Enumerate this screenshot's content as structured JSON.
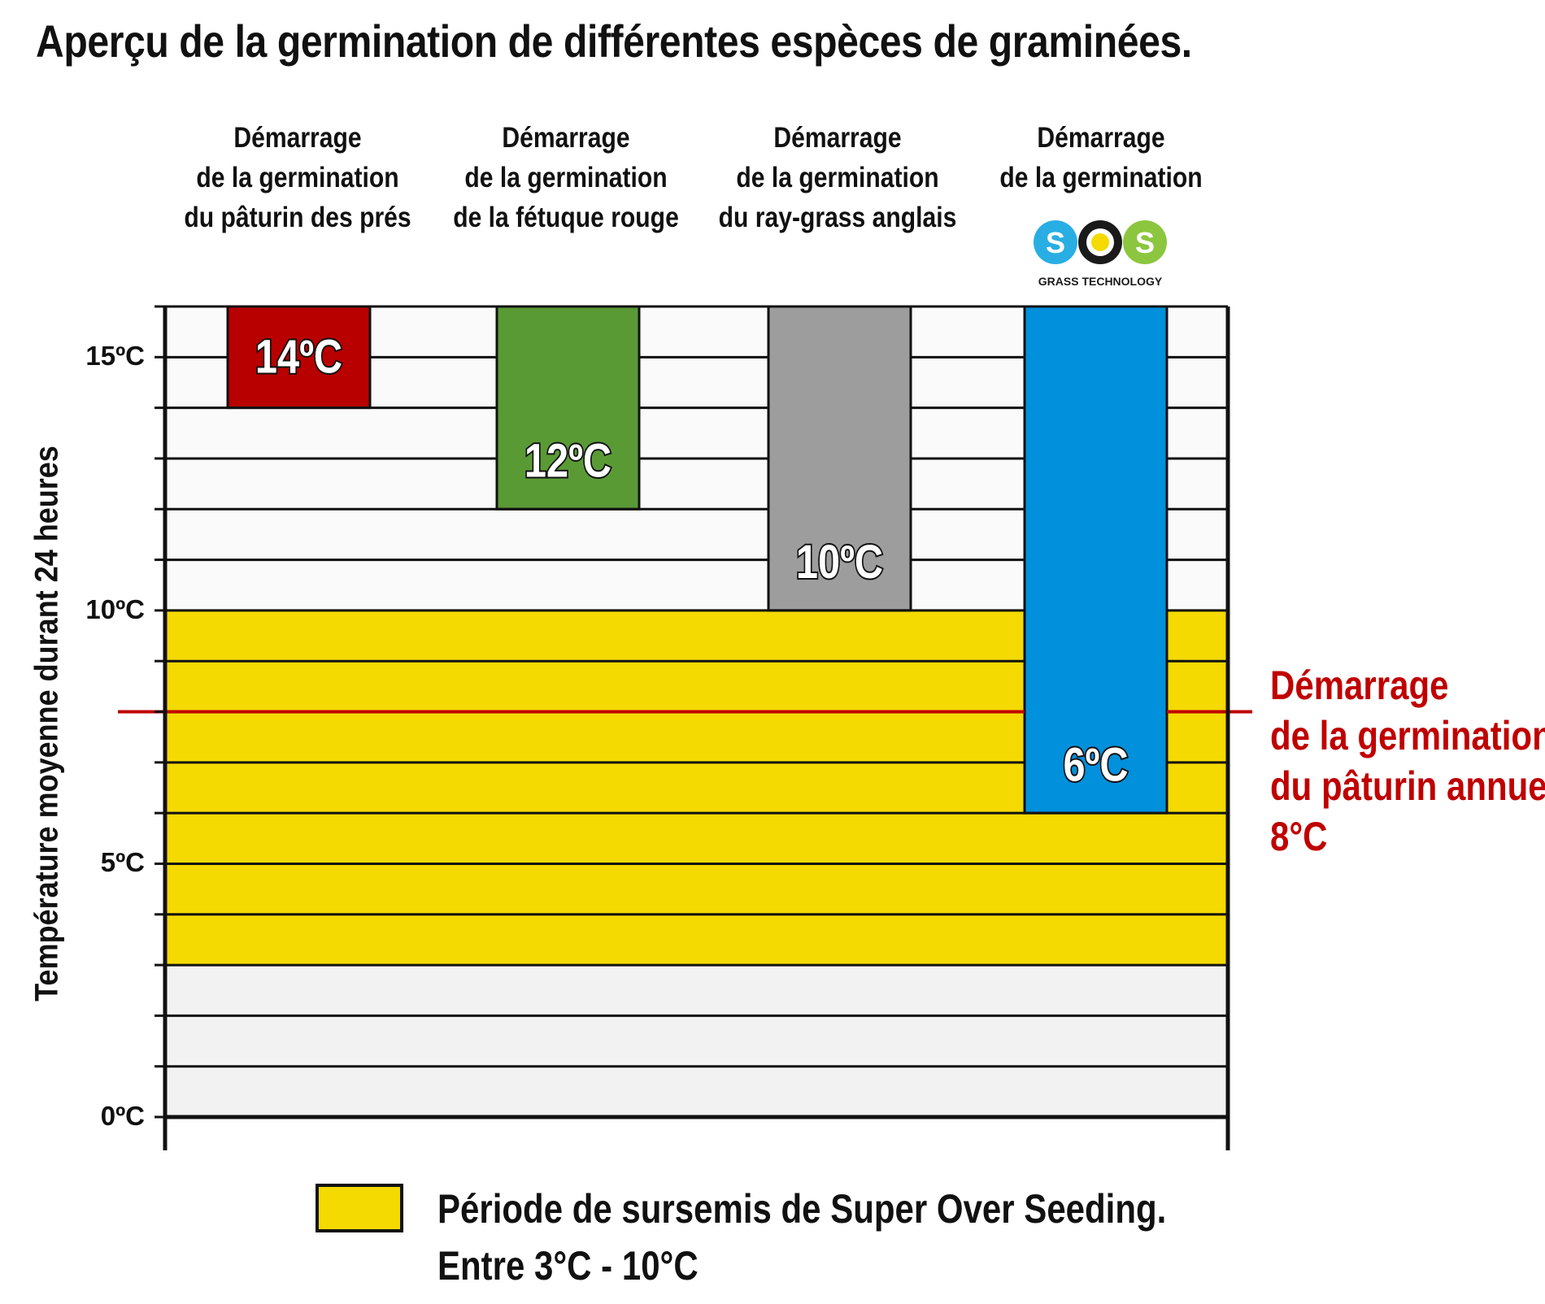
{
  "title": "Aperçu de la germination de différentes espèces de graminées.",
  "ylabel": "Température moyenne durant 24 heures",
  "colors": {
    "red": "#b80000",
    "green": "#5a9a35",
    "gray": "#9d9d9d",
    "blue": "#0090dc",
    "yellow": "#f4da00",
    "ref_line": "#c00000",
    "band_bg": "#f2f2f2"
  },
  "logo": {
    "letters": [
      "S",
      "O",
      "S"
    ],
    "subtitle": "GRASS TECHNOLOGY",
    "icon": "sos-grass-technology-logo",
    "colors": [
      "#29aee4",
      "#1a1a1a",
      "#8cc63f"
    ]
  },
  "chart_data": {
    "type": "bar",
    "categories": [
      "Démarrage de la germination du pâturin des prés",
      "Démarrage de la germination de la fétuque rouge",
      "Démarrage de la germination du ray-grass anglais",
      "Démarrage de la germination"
    ],
    "category_lines": [
      [
        "Démarrage",
        "de la germination",
        "du pâturin des prés"
      ],
      [
        "Démarrage",
        "de la germination",
        "de la fétuque rouge"
      ],
      [
        "Démarrage",
        "de la germination",
        "du ray-grass anglais"
      ],
      [
        "Démarrage",
        "de la germination"
      ]
    ],
    "values": [
      14,
      12,
      10,
      6
    ],
    "value_labels": [
      "14ºC",
      "12ºC",
      "10ºC",
      "6ºC"
    ],
    "bar_colors": [
      "#b80000",
      "#5a9a35",
      "#9d9d9d",
      "#0090dc"
    ],
    "ylim": [
      0,
      16
    ],
    "yticks": [
      0,
      5,
      10,
      15
    ],
    "ytick_labels": [
      "0ºC",
      "5ºC",
      "10ºC",
      "15ºC"
    ],
    "grid": true,
    "grid_step": 1,
    "band": {
      "from": 3,
      "to": 10,
      "color": "#f4da00"
    },
    "reference_line": {
      "value": 8,
      "label_lines": [
        "Démarrage",
        "de la germination",
        "du pâturin annuel",
        "8°C"
      ]
    },
    "legend": {
      "position": "bottom",
      "lines": [
        "Période de sursemis de Super Over Seeding.",
        "Entre 3°C - 10°C"
      ]
    }
  }
}
